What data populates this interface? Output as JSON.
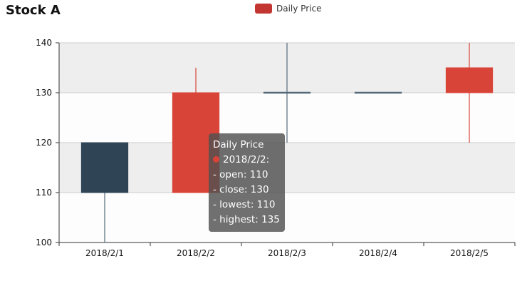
{
  "chart_data": {
    "type": "candlestick",
    "title": "Stock A",
    "legend": {
      "position": "top-center",
      "entries": [
        "Daily Price"
      ]
    },
    "categories": [
      "2018/2/1",
      "2018/2/2",
      "2018/2/3",
      "2018/2/4",
      "2018/2/5"
    ],
    "series": [
      {
        "name": "Daily Price",
        "fields": [
          "open",
          "close",
          "lowest",
          "highest"
        ],
        "data": [
          {
            "date": "2018/2/1",
            "open": 120,
            "close": 110,
            "lowest": 100,
            "highest": 120
          },
          {
            "date": "2018/2/2",
            "open": 110,
            "close": 130,
            "lowest": 110,
            "highest": 135
          },
          {
            "date": "2018/2/3",
            "open": 130,
            "close": 130,
            "lowest": 120,
            "highest": 140
          },
          {
            "date": "2018/2/4",
            "open": 130,
            "close": 130,
            "lowest": 130,
            "highest": 130
          },
          {
            "date": "2018/2/5",
            "open": 130,
            "close": 135,
            "lowest": 120,
            "highest": 140
          }
        ]
      }
    ],
    "ylim": [
      100,
      140
    ],
    "yticks": [
      100,
      110,
      120,
      130,
      140
    ],
    "grid": true,
    "colors": {
      "up": "#d94438",
      "down": "#2f4556",
      "legend": "#c23531",
      "band": "#eeeeee",
      "gridline": "#cccccc"
    }
  },
  "tooltip": {
    "series_name": "Daily Price",
    "date_line": "2018/2/2:",
    "lines": [
      "- open: 110",
      "- close: 130",
      "- lowest: 110",
      "- highest: 135"
    ],
    "dot_color": "#d94438"
  }
}
